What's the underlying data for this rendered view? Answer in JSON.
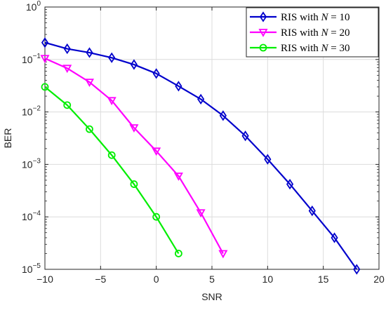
{
  "chart_data": {
    "type": "line",
    "xlabel": "SNR",
    "ylabel": "BER",
    "xlim": [
      -10,
      20
    ],
    "ylim": [
      1e-05,
      1
    ],
    "yscale": "log",
    "grid": true,
    "legend_position": "top-right",
    "x_ticks": [
      -10,
      -5,
      0,
      5,
      10,
      15,
      20
    ],
    "x_tick_labels": [
      "−10",
      "−5",
      "0",
      "5",
      "10",
      "15",
      "20"
    ],
    "y_ticks": [
      1,
      0.1,
      0.01,
      0.001,
      0.0001,
      1e-05
    ],
    "y_tick_labels": [
      {
        "base": "10",
        "exp": "0"
      },
      {
        "base": "10",
        "exp": "−1"
      },
      {
        "base": "10",
        "exp": "−2"
      },
      {
        "base": "10",
        "exp": "−3"
      },
      {
        "base": "10",
        "exp": "−4"
      },
      {
        "base": "10",
        "exp": "−5"
      }
    ],
    "series": [
      {
        "name": "RIS with N = 10",
        "legend_prefix": "RIS with ",
        "legend_var": "N",
        "legend_suffix": " = 10",
        "color": "#0000cc",
        "marker": "diamond",
        "x": [
          -10,
          -8,
          -6,
          -4,
          -2,
          0,
          2,
          4,
          6,
          8,
          10,
          12,
          14,
          16,
          18
        ],
        "y": [
          0.21,
          0.16,
          0.135,
          0.108,
          0.08,
          0.054,
          0.031,
          0.0175,
          0.0085,
          0.0035,
          0.00125,
          0.00042,
          0.00013,
          4e-05,
          1e-05
        ]
      },
      {
        "name": "RIS with N = 20",
        "legend_prefix": "RIS with ",
        "legend_var": "N",
        "legend_suffix": " = 20",
        "color": "#ff00ff",
        "marker": "triangle-down",
        "x": [
          -10,
          -8,
          -6,
          -4,
          -2,
          0,
          2,
          4,
          6
        ],
        "y": [
          0.105,
          0.068,
          0.037,
          0.0165,
          0.005,
          0.0018,
          0.0006,
          0.00012,
          2e-05
        ]
      },
      {
        "name": "RIS with N = 30",
        "legend_prefix": "RIS with ",
        "legend_var": "N",
        "legend_suffix": " = 30",
        "color": "#00ee00",
        "marker": "circle",
        "x": [
          -10,
          -8,
          -6,
          -4,
          -2,
          0,
          2
        ],
        "y": [
          0.03,
          0.0135,
          0.0047,
          0.0015,
          0.00042,
          0.0001,
          2e-05
        ]
      }
    ]
  }
}
